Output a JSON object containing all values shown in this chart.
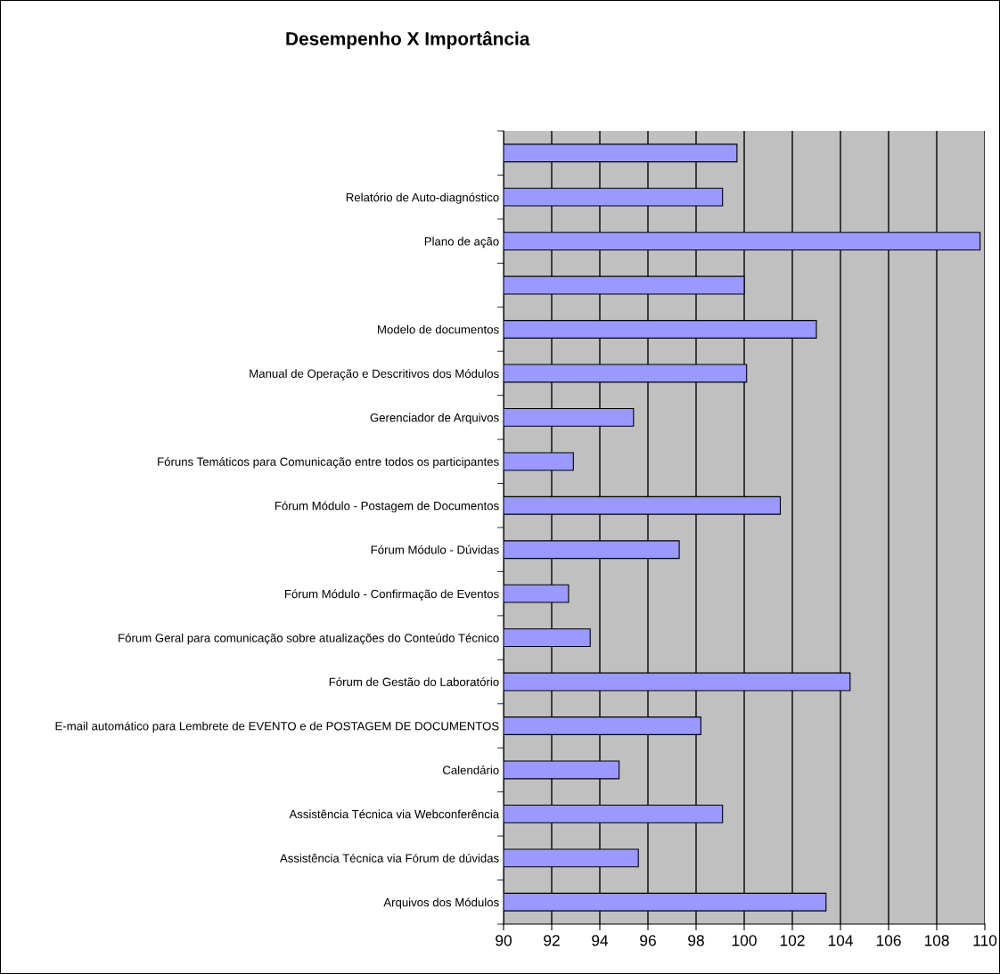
{
  "chart_data": {
    "type": "bar",
    "orientation": "horizontal",
    "title": "Desempenho X Importância",
    "categories": [
      null,
      "Relatório de Auto-diagnóstico",
      "Plano de ação",
      null,
      "Modelo de documentos",
      "Manual de Operação e Descritivos dos Módulos",
      "Gerenciador de Arquivos",
      "Fóruns Temáticos para Comunicação entre todos os participantes",
      "Fórum Módulo - Postagem de Documentos",
      "Fórum Módulo - Dúvidas",
      "Fórum Módulo - Confirmação de Eventos",
      "Fórum Geral para comunicação sobre atualizações do Conteúdo Técnico",
      "Fórum de Gestão do Laboratório",
      "E-mail automático para Lembrete de EVENTO e de POSTAGEM DE DOCUMENTOS",
      "Calendário",
      "Assistência Técnica via Webconferência",
      "Assistência Técnica via Fórum de dúvidas",
      "Arquivos dos Módulos"
    ],
    "values": [
      99.7,
      99.1,
      109.8,
      100.0,
      103.0,
      100.1,
      95.4,
      92.9,
      101.5,
      97.3,
      92.7,
      93.6,
      104.4,
      98.2,
      94.8,
      99.1,
      95.6,
      103.4
    ],
    "color": "#9999ff",
    "xlim": [
      90,
      110
    ],
    "xticks": [
      90,
      92,
      94,
      96,
      98,
      100,
      102,
      104,
      106,
      108,
      110
    ],
    "grid": "x",
    "legend": false
  }
}
